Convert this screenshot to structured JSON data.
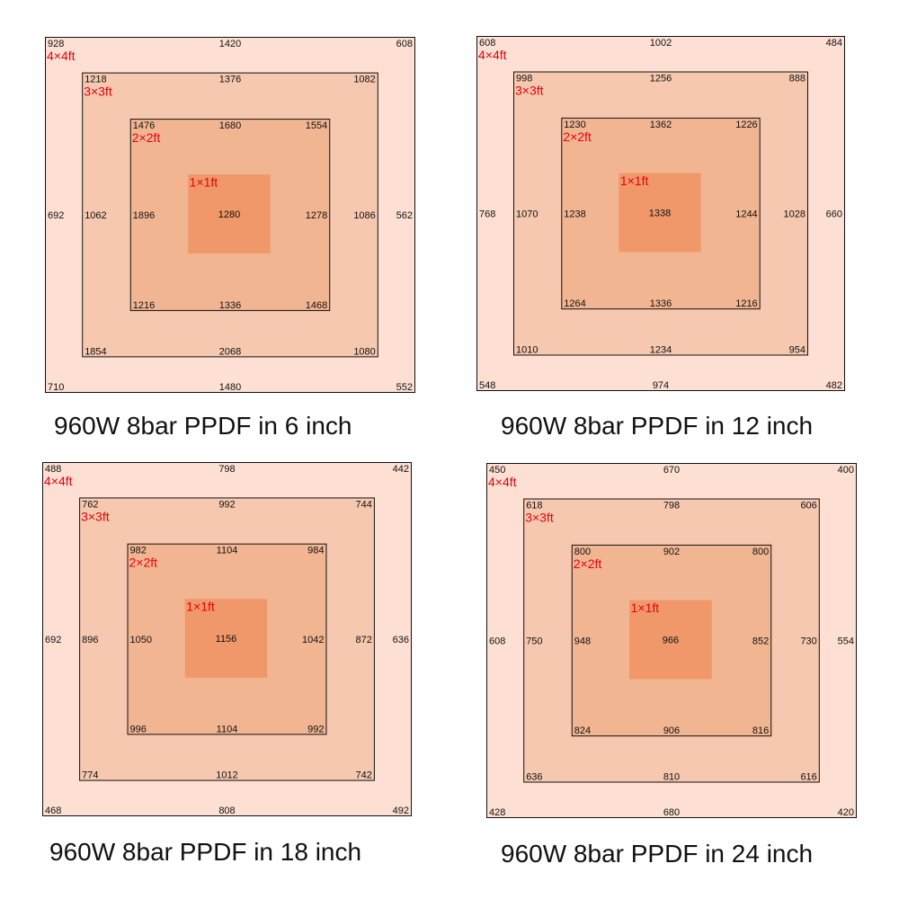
{
  "colors": {
    "zone_4x4": "#fde0d3",
    "zone_3x3": "#f6c8b0",
    "zone_2x2": "#f2b592",
    "zone_1x1": "#f0986a",
    "label_red": "#e8000b",
    "value_text": "#111111"
  },
  "chart_data": [
    {
      "type": "heatmap",
      "caption": "960W 8bar PPDF in 6 inch",
      "zones": [
        {
          "label": "4×4ft",
          "values": {
            "tl": 928,
            "tc": 1420,
            "tr": 608,
            "ml": 692,
            "mr": 562,
            "bl": 710,
            "bc": 1480,
            "br": 552
          }
        },
        {
          "label": "3×3ft",
          "values": {
            "tl": 1218,
            "tc": 1376,
            "tr": 1082,
            "ml": 1062,
            "mr": 1086,
            "bl": 1854,
            "bc": 2068,
            "br": 1080
          }
        },
        {
          "label": "2×2ft",
          "values": {
            "tl": 1476,
            "tc": 1680,
            "tr": 1554,
            "ml": 1896,
            "mr": 1278,
            "bl": 1216,
            "bc": 1336,
            "br": 1468
          }
        },
        {
          "label": "1×1ft",
          "values": {
            "c": 1280
          }
        }
      ]
    },
    {
      "type": "heatmap",
      "caption": "960W 8bar PPDF in 12 inch",
      "zones": [
        {
          "label": "4×4ft",
          "values": {
            "tl": 608,
            "tc": 1002,
            "tr": 484,
            "ml": 768,
            "mr": 660,
            "bl": 548,
            "bc": 974,
            "br": 482
          }
        },
        {
          "label": "3×3ft",
          "values": {
            "tl": 998,
            "tc": 1256,
            "tr": 888,
            "ml": 1070,
            "mr": 1028,
            "bl": 1010,
            "bc": 1234,
            "br": 954
          }
        },
        {
          "label": "2×2ft",
          "values": {
            "tl": 1230,
            "tc": 1362,
            "tr": 1226,
            "ml": 1238,
            "mr": 1244,
            "bl": 1264,
            "bc": 1336,
            "br": 1216
          }
        },
        {
          "label": "1×1ft",
          "values": {
            "c": 1338
          }
        }
      ]
    },
    {
      "type": "heatmap",
      "caption": "960W 8bar PPDF in 18 inch",
      "zones": [
        {
          "label": "4×4ft",
          "values": {
            "tl": 488,
            "tc": 798,
            "tr": 442,
            "ml": 692,
            "mr": 636,
            "bl": 468,
            "bc": 808,
            "br": 492
          }
        },
        {
          "label": "3×3ft",
          "values": {
            "tl": 762,
            "tc": 992,
            "tr": 744,
            "ml": 896,
            "mr": 872,
            "bl": 774,
            "bc": 1012,
            "br": 742
          }
        },
        {
          "label": "2×2ft",
          "values": {
            "tl": 982,
            "tc": 1104,
            "tr": 984,
            "ml": 1050,
            "mr": 1042,
            "bl": 996,
            "bc": 1104,
            "br": 992
          }
        },
        {
          "label": "1×1ft",
          "values": {
            "c": 1156
          }
        }
      ]
    },
    {
      "type": "heatmap",
      "caption": "960W 8bar PPDF in 24 inch",
      "zones": [
        {
          "label": "4×4ft",
          "values": {
            "tl": 450,
            "tc": 670,
            "tr": 400,
            "ml": 608,
            "mr": 554,
            "bl": 428,
            "bc": 680,
            "br": 420
          }
        },
        {
          "label": "3×3ft",
          "values": {
            "tl": 618,
            "tc": 798,
            "tr": 606,
            "ml": 750,
            "mr": 730,
            "bl": 636,
            "bc": 810,
            "br": 616
          }
        },
        {
          "label": "2×2ft",
          "values": {
            "tl": 800,
            "tc": 902,
            "tr": 800,
            "ml": 948,
            "mr": 852,
            "bl": 824,
            "bc": 906,
            "br": 816
          }
        },
        {
          "label": "1×1ft",
          "values": {
            "c": 966
          }
        }
      ]
    }
  ]
}
